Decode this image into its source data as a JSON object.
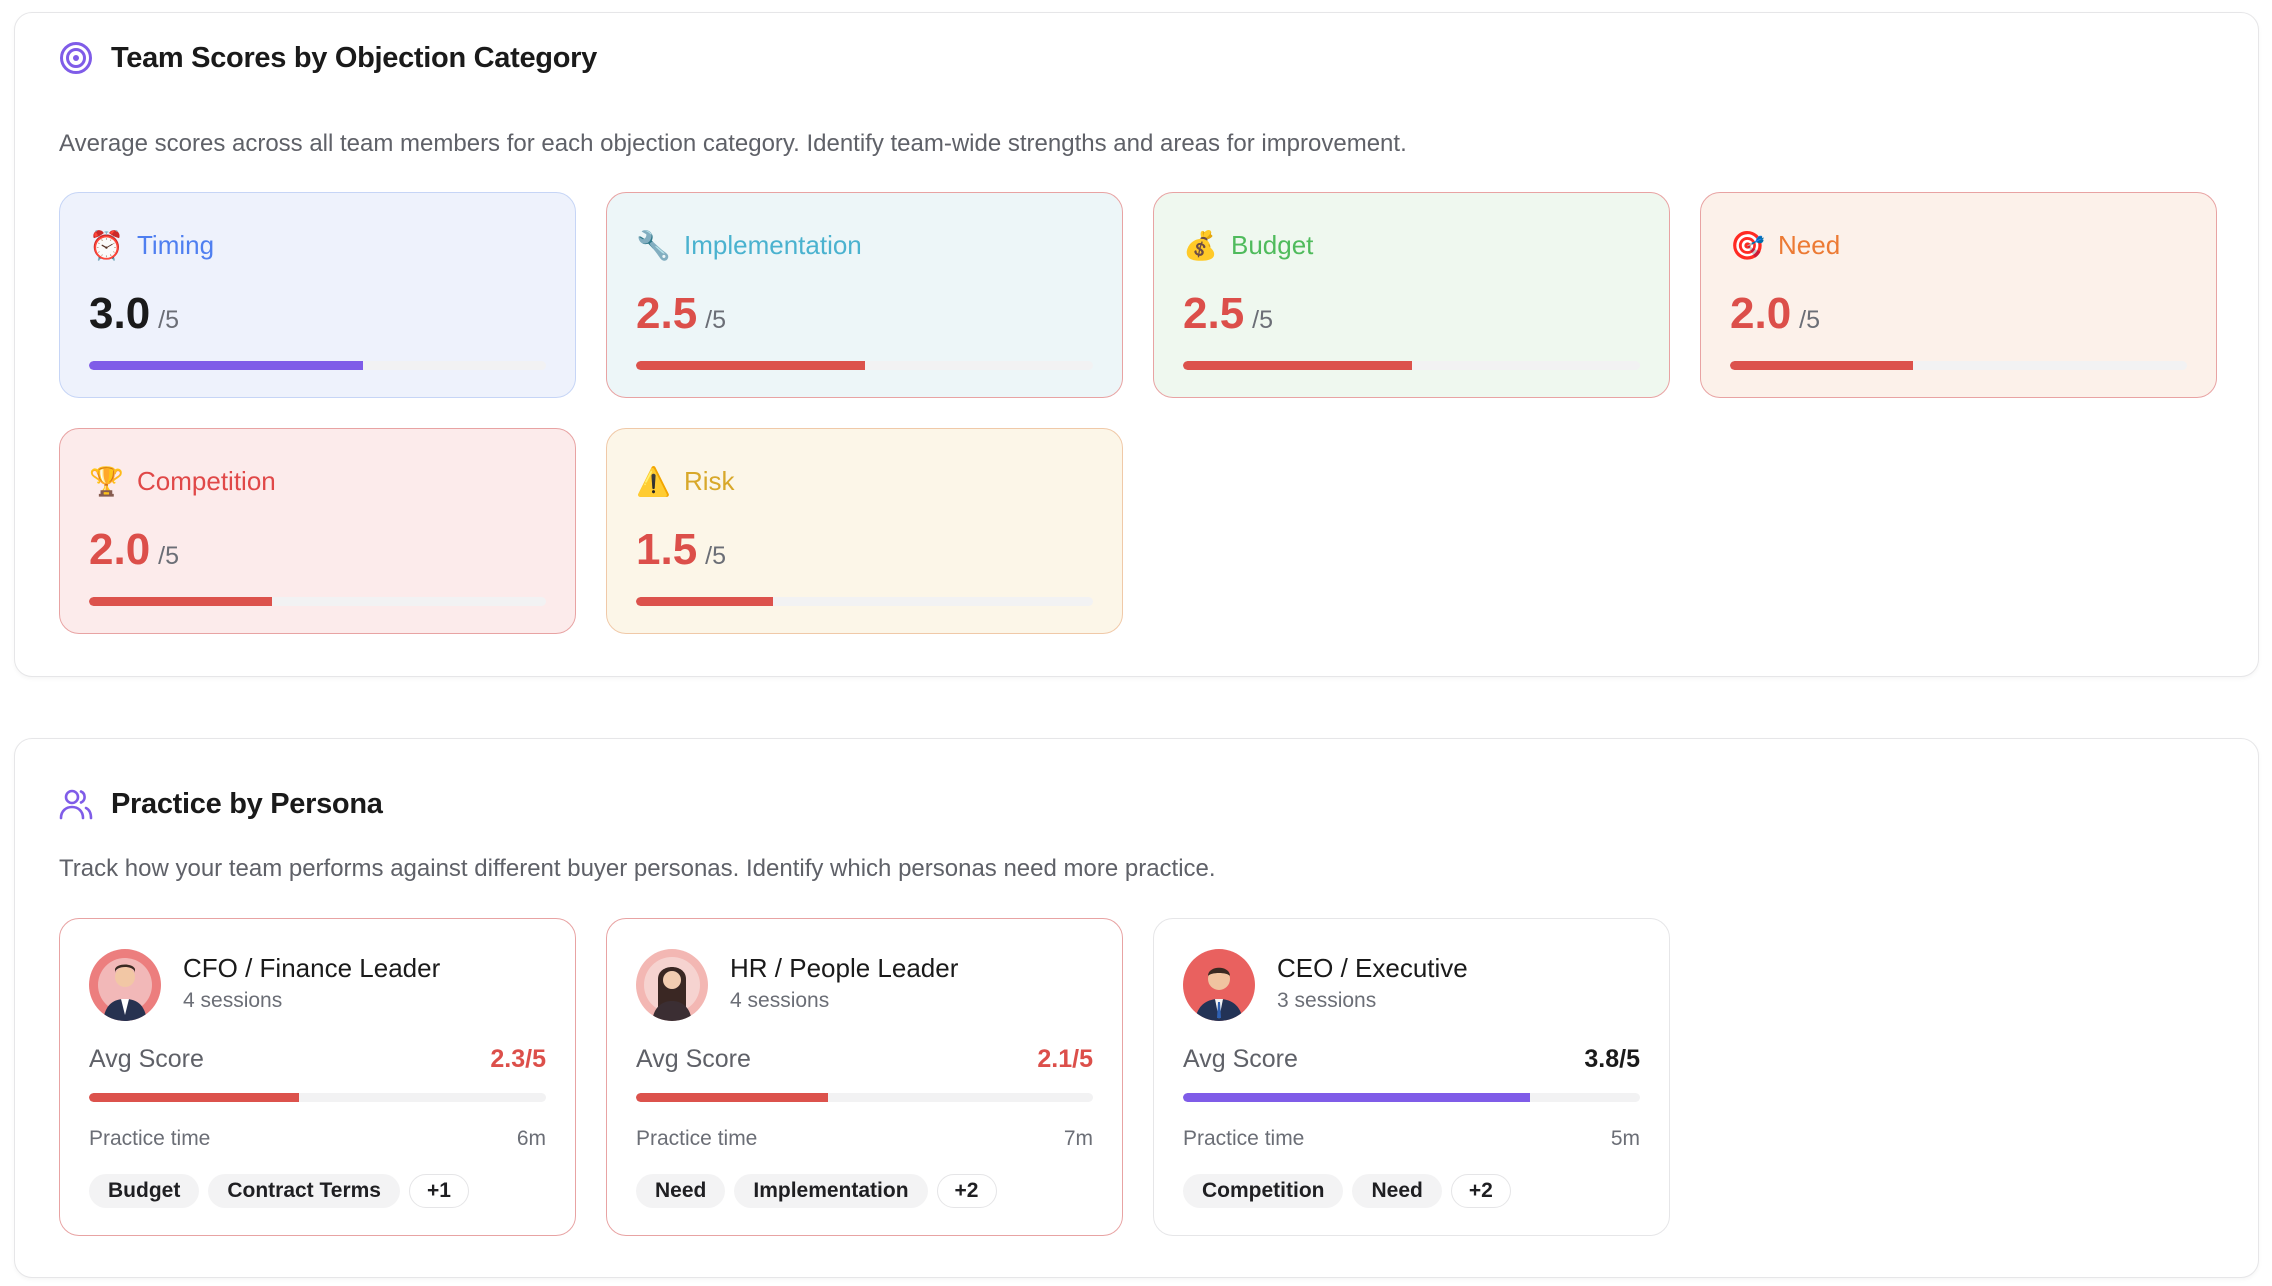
{
  "categories_section": {
    "title": "Team Scores by Objection Category",
    "description": "Average scores across all team members for each objection category. Identify team-wide strengths and areas for improvement.",
    "max_label": "/5",
    "items": [
      {
        "label": "Timing",
        "icon": "alarm-clock-icon",
        "emoji": "⏰",
        "score": "3.0",
        "value": 3.0,
        "label_color": "#4f7ff0",
        "score_color": "#1a1a1a",
        "bar_color": "#7f5ce8",
        "bg": "#eef2fc",
        "border": "#c6d5f6"
      },
      {
        "label": "Implementation",
        "icon": "wrench-icon",
        "emoji": "🔧",
        "score": "2.5",
        "value": 2.5,
        "label_color": "#4ab2cf",
        "score_color": "#dc4f4a",
        "bar_color": "#dc524c",
        "bg": "#edf6f8",
        "border": "#e8a3a3"
      },
      {
        "label": "Budget",
        "icon": "money-bag-icon",
        "emoji": "💰",
        "score": "2.5",
        "value": 2.5,
        "label_color": "#4fbb5c",
        "score_color": "#dc4f4a",
        "bar_color": "#dc524c",
        "bg": "#eff8ef",
        "border": "#e8a3a3"
      },
      {
        "label": "Need",
        "icon": "target-icon",
        "emoji": "🎯",
        "score": "2.0",
        "value": 2.0,
        "label_color": "#ec7a34",
        "score_color": "#dc4f4a",
        "bar_color": "#dc524c",
        "bg": "#fcf1ea",
        "border": "#e8a3a3"
      },
      {
        "label": "Competition",
        "icon": "trophy-icon",
        "emoji": "🏆",
        "score": "2.0",
        "value": 2.0,
        "label_color": "#e04848",
        "score_color": "#dc4f4a",
        "bar_color": "#dc524c",
        "bg": "#fcebeb",
        "border": "#e8a3a3"
      },
      {
        "label": "Risk",
        "icon": "warning-icon",
        "emoji": "⚠️",
        "score": "1.5",
        "value": 1.5,
        "label_color": "#d8a82a",
        "score_color": "#dc4f4a",
        "bar_color": "#dc524c",
        "bg": "#fcf6e8",
        "border": "#f0c9a8"
      }
    ]
  },
  "persona_section": {
    "title": "Practice by Persona",
    "description": "Track how your team performs against different buyer personas. Identify which personas need more practice.",
    "avg_label": "Avg Score",
    "practice_label": "Practice time",
    "items": [
      {
        "name": "CFO / Finance Leader",
        "sessions": "4 sessions",
        "score": "2.3/5",
        "value": 2.3,
        "score_color": "#dc4f4a",
        "bar_color": "#dc524c",
        "practice_time": "6m",
        "tags": [
          "Budget",
          "Contract Terms"
        ],
        "more": "+1"
      },
      {
        "name": "HR / People Leader",
        "sessions": "4 sessions",
        "score": "2.1/5",
        "value": 2.1,
        "score_color": "#dc4f4a",
        "bar_color": "#dc524c",
        "practice_time": "7m",
        "tags": [
          "Need",
          "Implementation"
        ],
        "more": "+2"
      },
      {
        "name": "CEO / Executive",
        "sessions": "3 sessions",
        "score": "3.8/5",
        "value": 3.8,
        "score_color": "#1a1a1a",
        "bar_color": "#7f5ce8",
        "practice_time": "5m",
        "tags": [
          "Competition",
          "Need"
        ],
        "more": "+2"
      }
    ]
  }
}
